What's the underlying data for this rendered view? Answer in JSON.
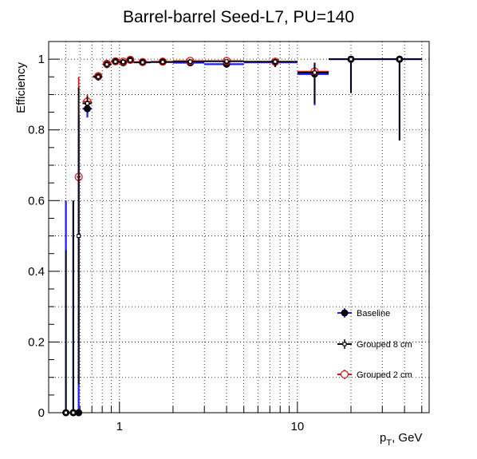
{
  "chart_data": {
    "type": "scatter",
    "title": "Barrel-barrel Seed-L7, PU=140",
    "xlabel": "p",
    "xlabel_sub": "T",
    "xlabel_unit": ", GeV",
    "ylabel": "Efficiency",
    "xscale": "log",
    "xlim": [
      0.4,
      55
    ],
    "ylim": [
      0,
      1.05
    ],
    "grid": true,
    "legend_position": "bottom-right",
    "x_ticks": [
      {
        "value": 1,
        "label": "1"
      },
      {
        "value": 10,
        "label": "10"
      }
    ],
    "y_ticks": [
      {
        "value": 0,
        "label": "0"
      },
      {
        "value": 0.2,
        "label": "0.2"
      },
      {
        "value": 0.4,
        "label": "0.4"
      },
      {
        "value": 0.6,
        "label": "0.6"
      },
      {
        "value": 0.8,
        "label": "0.8"
      },
      {
        "value": 1,
        "label": "1"
      }
    ],
    "series": [
      {
        "name": "Baseline",
        "color": "#1a1aff",
        "marker": "filled-circle",
        "points": [
          {
            "x": 0.5,
            "xlo": 0.48,
            "xhi": 0.52,
            "y": 0,
            "ylo": 0,
            "yhi": 0.6
          },
          {
            "x": 0.55,
            "xlo": 0.53,
            "xhi": 0.57,
            "y": 0,
            "ylo": 0,
            "yhi": 0.6
          },
          {
            "x": 0.59,
            "xlo": 0.575,
            "xhi": 0.605,
            "y": 0,
            "ylo": 0,
            "yhi": 0.84
          },
          {
            "x": 0.66,
            "xlo": 0.62,
            "xhi": 0.7,
            "y": 0.86,
            "ylo": 0.835,
            "yhi": 0.88
          },
          {
            "x": 0.76,
            "xlo": 0.71,
            "xhi": 0.8,
            "y": 0.95,
            "ylo": 0.94,
            "yhi": 0.96
          },
          {
            "x": 0.85,
            "xlo": 0.81,
            "xhi": 0.9,
            "y": 0.985,
            "ylo": 0.975,
            "yhi": 0.995
          },
          {
            "x": 0.95,
            "xlo": 0.9,
            "xhi": 1.0,
            "y": 0.993,
            "ylo": 0.986,
            "yhi": 0.998
          },
          {
            "x": 1.05,
            "xlo": 1.0,
            "xhi": 1.1,
            "y": 0.99,
            "ylo": 0.983,
            "yhi": 0.996
          },
          {
            "x": 1.15,
            "xlo": 1.1,
            "xhi": 1.2,
            "y": 0.998,
            "ylo": 0.993,
            "yhi": 1.0
          },
          {
            "x": 1.35,
            "xlo": 1.2,
            "xhi": 1.5,
            "y": 0.991,
            "ylo": 0.985,
            "yhi": 0.996
          },
          {
            "x": 1.75,
            "xlo": 1.5,
            "xhi": 2.0,
            "y": 0.992,
            "ylo": 0.987,
            "yhi": 0.996
          },
          {
            "x": 2.5,
            "xlo": 2.0,
            "xhi": 3.0,
            "y": 0.99,
            "ylo": 0.985,
            "yhi": 0.995
          },
          {
            "x": 4.0,
            "xlo": 3.0,
            "xhi": 5.0,
            "y": 0.986,
            "ylo": 0.978,
            "yhi": 0.993
          },
          {
            "x": 7.5,
            "xlo": 5.0,
            "xhi": 10.0,
            "y": 0.991,
            "ylo": 0.978,
            "yhi": 0.998
          },
          {
            "x": 12.5,
            "xlo": 10.0,
            "xhi": 15.0,
            "y": 0.958,
            "ylo": 0.87,
            "yhi": 0.99
          },
          {
            "x": 20.0,
            "xlo": 15.0,
            "xhi": 25.0,
            "y": 1.0,
            "ylo": 0.905,
            "yhi": 1.0
          },
          {
            "x": 37.5,
            "xlo": 25.0,
            "xhi": 50.0,
            "y": 1.0,
            "ylo": 0.77,
            "yhi": 1.0
          }
        ]
      },
      {
        "name": "Grouped 8 cm",
        "color": "#000000",
        "marker": "small-square",
        "points": [
          {
            "x": 0.5,
            "xlo": 0.48,
            "xhi": 0.52,
            "y": 0,
            "ylo": 0,
            "yhi": 0.46
          },
          {
            "x": 0.55,
            "xlo": 0.53,
            "xhi": 0.57,
            "y": 0,
            "ylo": 0,
            "yhi": 0.6
          },
          {
            "x": 0.59,
            "xlo": 0.575,
            "xhi": 0.605,
            "y": 0.5,
            "ylo": 0.08,
            "yhi": 0.92
          },
          {
            "x": 0.66,
            "xlo": 0.62,
            "xhi": 0.7,
            "y": 0.875,
            "ylo": 0.85,
            "yhi": 0.895
          },
          {
            "x": 0.76,
            "xlo": 0.71,
            "xhi": 0.8,
            "y": 0.95,
            "ylo": 0.94,
            "yhi": 0.96
          },
          {
            "x": 0.85,
            "xlo": 0.81,
            "xhi": 0.9,
            "y": 0.985,
            "ylo": 0.975,
            "yhi": 0.995
          },
          {
            "x": 0.95,
            "xlo": 0.9,
            "xhi": 1.0,
            "y": 0.993,
            "ylo": 0.986,
            "yhi": 0.998
          },
          {
            "x": 1.05,
            "xlo": 1.0,
            "xhi": 1.1,
            "y": 0.992,
            "ylo": 0.985,
            "yhi": 0.997
          },
          {
            "x": 1.15,
            "xlo": 1.1,
            "xhi": 1.2,
            "y": 0.997,
            "ylo": 0.992,
            "yhi": 1.0
          },
          {
            "x": 1.35,
            "xlo": 1.2,
            "xhi": 1.5,
            "y": 0.991,
            "ylo": 0.985,
            "yhi": 0.996
          },
          {
            "x": 1.75,
            "xlo": 1.5,
            "xhi": 2.0,
            "y": 0.992,
            "ylo": 0.987,
            "yhi": 0.996
          },
          {
            "x": 2.5,
            "xlo": 2.0,
            "xhi": 3.0,
            "y": 0.993,
            "ylo": 0.988,
            "yhi": 0.997
          },
          {
            "x": 4.0,
            "xlo": 3.0,
            "xhi": 5.0,
            "y": 0.994,
            "ylo": 0.988,
            "yhi": 0.998
          },
          {
            "x": 7.5,
            "xlo": 5.0,
            "xhi": 10.0,
            "y": 0.993,
            "ylo": 0.978,
            "yhi": 0.998
          },
          {
            "x": 12.5,
            "xlo": 10.0,
            "xhi": 15.0,
            "y": 0.962,
            "ylo": 0.875,
            "yhi": 0.99
          },
          {
            "x": 20.0,
            "xlo": 15.0,
            "xhi": 25.0,
            "y": 1.0,
            "ylo": 0.905,
            "yhi": 1.0
          },
          {
            "x": 37.5,
            "xlo": 25.0,
            "xhi": 50.0,
            "y": 1.0,
            "ylo": 0.77,
            "yhi": 1.0
          }
        ]
      },
      {
        "name": "Grouped 2 cm",
        "color": "#dd1111",
        "marker": "open-circle",
        "points": [
          {
            "x": 0.59,
            "xlo": 0.575,
            "xhi": 0.605,
            "y": 0.667,
            "ylo": 0.25,
            "yhi": 0.95
          },
          {
            "x": 0.66,
            "xlo": 0.62,
            "xhi": 0.7,
            "y": 0.88,
            "ylo": 0.855,
            "yhi": 0.9
          },
          {
            "x": 0.76,
            "xlo": 0.71,
            "xhi": 0.8,
            "y": 0.952,
            "ylo": 0.942,
            "yhi": 0.962
          },
          {
            "x": 0.85,
            "xlo": 0.81,
            "xhi": 0.9,
            "y": 0.987,
            "ylo": 0.977,
            "yhi": 0.995
          },
          {
            "x": 0.95,
            "xlo": 0.9,
            "xhi": 1.0,
            "y": 0.994,
            "ylo": 0.987,
            "yhi": 0.998
          },
          {
            "x": 1.05,
            "xlo": 1.0,
            "xhi": 1.1,
            "y": 0.993,
            "ylo": 0.986,
            "yhi": 0.997
          },
          {
            "x": 1.15,
            "xlo": 1.1,
            "xhi": 1.2,
            "y": 0.998,
            "ylo": 0.993,
            "yhi": 1.0
          },
          {
            "x": 1.35,
            "xlo": 1.2,
            "xhi": 1.5,
            "y": 0.992,
            "ylo": 0.986,
            "yhi": 0.996
          },
          {
            "x": 1.75,
            "xlo": 1.5,
            "xhi": 2.0,
            "y": 0.993,
            "ylo": 0.988,
            "yhi": 0.997
          },
          {
            "x": 2.5,
            "xlo": 2.0,
            "xhi": 3.0,
            "y": 0.995,
            "ylo": 0.99,
            "yhi": 0.998
          },
          {
            "x": 4.0,
            "xlo": 3.0,
            "xhi": 5.0,
            "y": 0.995,
            "ylo": 0.989,
            "yhi": 0.998
          },
          {
            "x": 7.5,
            "xlo": 5.0,
            "xhi": 10.0,
            "y": 0.993,
            "ylo": 0.978,
            "yhi": 0.998
          },
          {
            "x": 12.5,
            "xlo": 10.0,
            "xhi": 15.0,
            "y": 0.965,
            "ylo": 0.88,
            "yhi": 0.99
          }
        ]
      }
    ]
  }
}
